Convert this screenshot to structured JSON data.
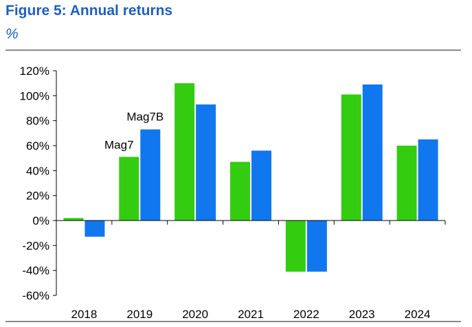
{
  "title": "Figure 5: Annual returns",
  "subtitle": "%",
  "colors": {
    "Mag7": "#33cc11",
    "Mag7B": "#1177ee"
  },
  "chart_data": {
    "type": "bar",
    "categories": [
      "2018",
      "2019",
      "2020",
      "2021",
      "2022",
      "2023",
      "2024"
    ],
    "series": [
      {
        "name": "Mag7",
        "values": [
          2,
          51,
          110,
          47,
          -41,
          101,
          60
        ]
      },
      {
        "name": "Mag7B",
        "values": [
          -13,
          73,
          93,
          56,
          -41,
          109,
          65
        ]
      }
    ],
    "ylim": [
      -60,
      120
    ],
    "yticks": [
      -60,
      -40,
      -20,
      0,
      20,
      40,
      60,
      80,
      100,
      120
    ],
    "ytick_suffix": "%",
    "annotations": [
      "Mag7",
      "Mag7B"
    ],
    "xlabel": "",
    "ylabel": ""
  }
}
